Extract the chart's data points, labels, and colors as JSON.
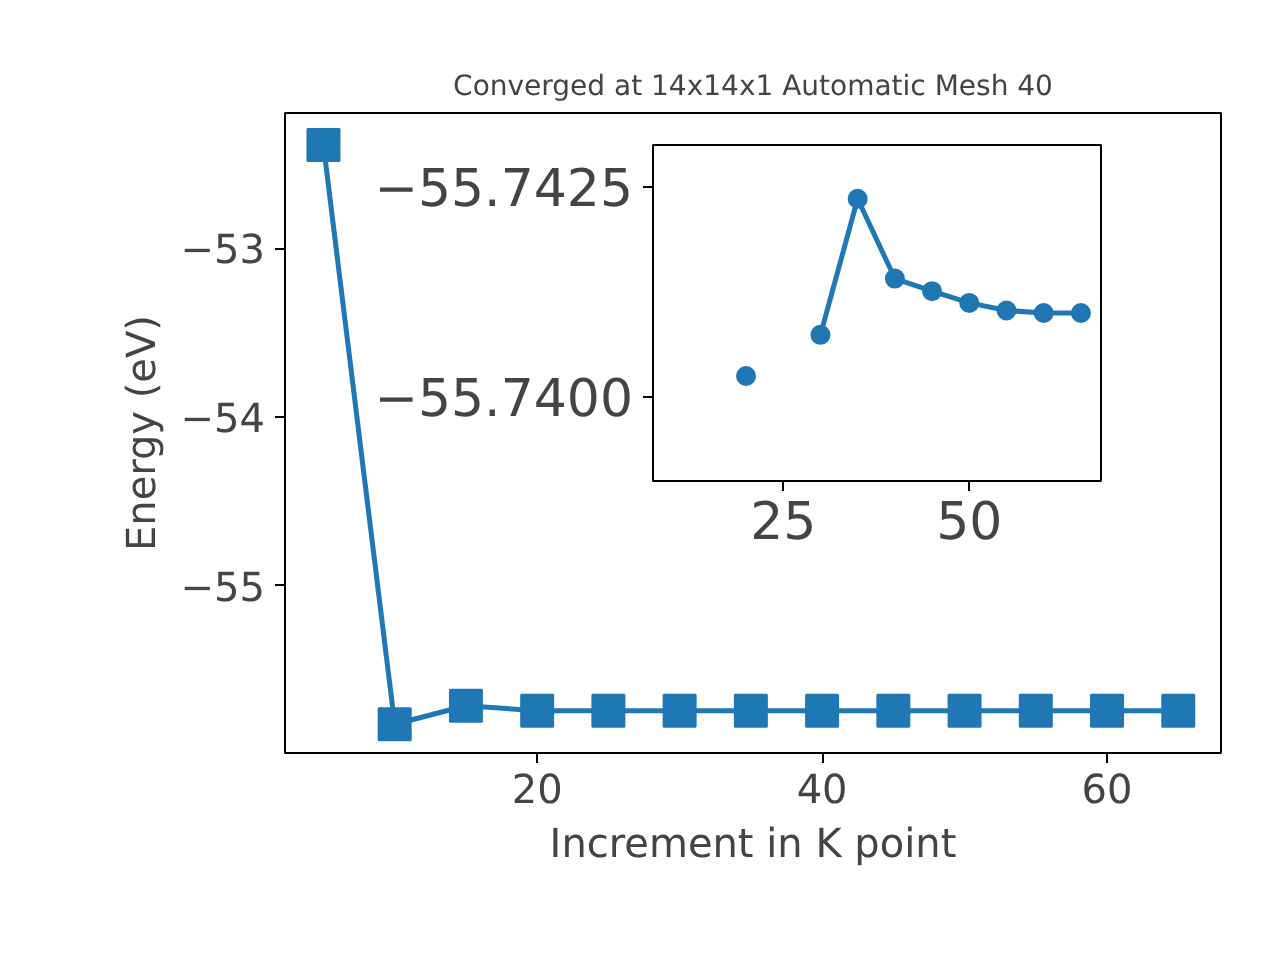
{
  "chart_data": [
    {
      "type": "line",
      "title": "Converged at 14x14x1 Automatic Mesh 40",
      "xlabel": "Increment in K point",
      "ylabel": "Energy (eV)",
      "x": [
        5,
        10,
        15,
        20,
        25,
        30,
        35,
        40,
        45,
        50,
        55,
        60,
        65
      ],
      "series": [
        {
          "color": "#1f77b4",
          "values": [
            -52.39,
            -55.82,
            -55.71,
            -55.74,
            -55.74,
            -55.74,
            -55.74,
            -55.74,
            -55.74,
            -55.74,
            -55.74,
            -55.74,
            -55.74
          ]
        }
      ],
      "marker": "square",
      "line_style": "solid",
      "grid": false,
      "xlim": [
        2.3,
        68
      ],
      "ylim": [
        -55.99,
        -52.2
      ],
      "xticks": [
        20,
        40,
        60
      ],
      "yticks": [
        -55,
        -54,
        -53
      ]
    },
    {
      "type": "line",
      "x": [
        20,
        25,
        30,
        35,
        40,
        45,
        50,
        55,
        60,
        65
      ],
      "series": [
        {
          "color": "#1f77b4",
          "values": [
            -55.74025,
            null,
            -55.74074,
            -55.74236,
            -55.74141,
            -55.74126,
            -55.74112,
            -55.74103,
            -55.741,
            -55.741
          ]
        }
      ],
      "marker": "circle",
      "line_style": "solid",
      "grid": false,
      "xlim": [
        7.5,
        67.7
      ],
      "ylim": [
        -55.739,
        -55.743
      ],
      "xticks": [
        25,
        50
      ],
      "yticks": [
        {
          "value": -55.74,
          "label": "−55.7400"
        },
        -55.7425
      ]
    }
  ]
}
